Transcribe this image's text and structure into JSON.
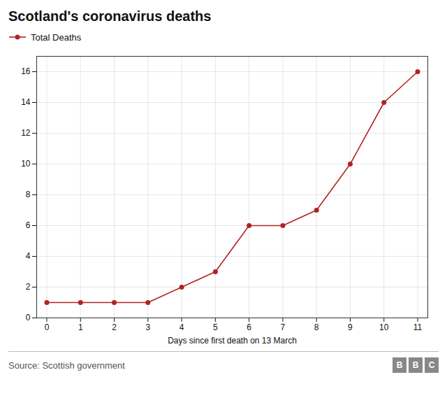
{
  "chart_data": {
    "type": "line",
    "title": "Scotland's coronavirus deaths",
    "xlabel": "Days since first death on 13 March",
    "annotations": [
      "Source: Scottish government",
      "BBC"
    ],
    "x": [
      0,
      1,
      2,
      3,
      4,
      5,
      6,
      7,
      8,
      9,
      10,
      11
    ],
    "series": [
      {
        "name": "Total Deaths",
        "color": "#b22222",
        "marker": "circle",
        "line_style": "solid",
        "values": [
          1,
          1,
          1,
          1,
          2,
          3,
          6,
          6,
          7,
          10,
          14,
          16
        ]
      }
    ],
    "xlim": [
      -0.3,
      11.3
    ],
    "xticks": [
      0,
      1,
      2,
      3,
      4,
      5,
      6,
      7,
      8,
      9,
      10,
      11
    ],
    "ylim": [
      0,
      17
    ],
    "yticks": [
      0,
      2,
      4,
      6,
      8,
      10,
      12,
      14,
      16
    ],
    "grid": true,
    "legend": "top"
  }
}
